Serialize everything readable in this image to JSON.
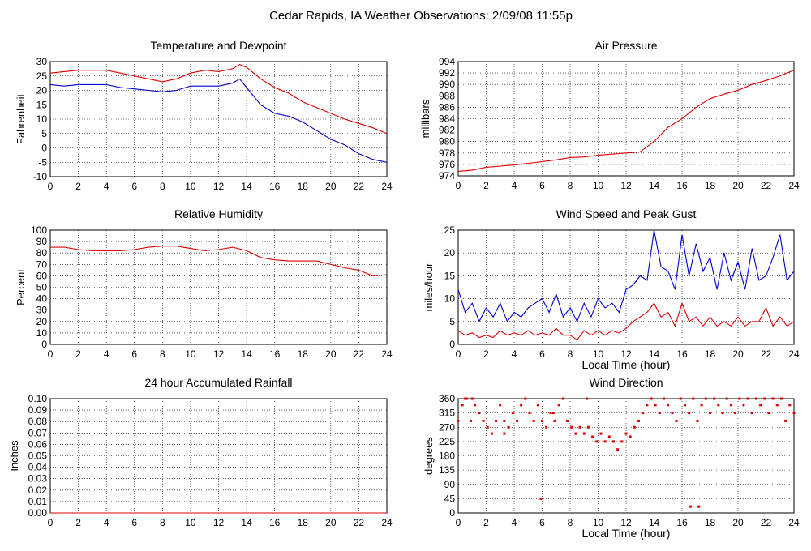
{
  "title": "Cedar Rapids, IA Weather Observations: 2/09/08 11:55p",
  "colors": {
    "red": "#e00000",
    "blue": "#0000d0",
    "grid": "#000000"
  },
  "chart_data": [
    {
      "id": "temp",
      "type": "line",
      "title": "Temperature and Dewpoint",
      "xlabel": "",
      "ylabel": "Fahrenheit",
      "xlim": [
        0,
        24
      ],
      "ylim": [
        -10,
        30
      ],
      "xticks": [
        0,
        2,
        4,
        6,
        8,
        10,
        12,
        14,
        16,
        18,
        20,
        22,
        24
      ],
      "yticks": [
        -10,
        -5,
        0,
        5,
        10,
        15,
        20,
        25,
        30
      ],
      "grid": true,
      "series": [
        {
          "color": "red",
          "x": [
            0,
            1,
            2,
            3,
            4,
            5,
            6,
            7,
            8,
            9,
            10,
            11,
            12,
            13,
            13.5,
            14,
            15,
            16,
            17,
            18,
            19,
            20,
            21,
            22,
            23,
            24
          ],
          "y": [
            26,
            26.5,
            27,
            27,
            27,
            26,
            25,
            24,
            23,
            24,
            26,
            27,
            26.5,
            27.5,
            29,
            28,
            24,
            21,
            19,
            16,
            14,
            12,
            10,
            8.5,
            7,
            5
          ]
        },
        {
          "color": "blue",
          "x": [
            0,
            1,
            2,
            3,
            4,
            5,
            6,
            7,
            8,
            9,
            10,
            11,
            12,
            13,
            13.5,
            14,
            15,
            16,
            17,
            18,
            19,
            20,
            21,
            22,
            23,
            24
          ],
          "y": [
            22,
            21.5,
            22,
            22,
            22,
            21,
            20.5,
            20,
            19.5,
            20,
            21.5,
            21.5,
            21.5,
            22.5,
            24,
            21,
            15,
            12,
            11,
            9,
            6,
            3,
            1,
            -2,
            -4,
            -5
          ]
        }
      ]
    },
    {
      "id": "pressure",
      "type": "line",
      "title": "Air Pressure",
      "xlabel": "",
      "ylabel": "millibars",
      "xlim": [
        0,
        24
      ],
      "ylim": [
        974,
        994
      ],
      "xticks": [
        0,
        2,
        4,
        6,
        8,
        10,
        12,
        14,
        16,
        18,
        20,
        22,
        24
      ],
      "yticks": [
        974,
        976,
        978,
        980,
        982,
        984,
        986,
        988,
        990,
        992,
        994
      ],
      "grid": true,
      "series": [
        {
          "color": "red",
          "x": [
            0,
            1,
            2,
            3,
            4,
            5,
            6,
            7,
            8,
            9,
            10,
            11,
            12,
            13,
            14,
            15,
            16,
            17,
            18,
            19,
            20,
            21,
            22,
            23,
            24
          ],
          "y": [
            974.8,
            975,
            975.5,
            975.7,
            975.9,
            976.2,
            976.5,
            976.8,
            977.2,
            977.3,
            977.6,
            977.8,
            978,
            978.2,
            980,
            982.5,
            984,
            986,
            987.5,
            988.3,
            989,
            990,
            990.7,
            991.5,
            992.5
          ]
        }
      ]
    },
    {
      "id": "rh",
      "type": "line",
      "title": "Relative Humidity",
      "xlabel": "",
      "ylabel": "Percent",
      "xlim": [
        0,
        24
      ],
      "ylim": [
        0,
        100
      ],
      "xticks": [
        0,
        2,
        4,
        6,
        8,
        10,
        12,
        14,
        16,
        18,
        20,
        22,
        24
      ],
      "yticks": [
        0,
        10,
        20,
        30,
        40,
        50,
        60,
        70,
        80,
        90,
        100
      ],
      "grid": true,
      "series": [
        {
          "color": "red",
          "x": [
            0,
            1,
            2,
            3,
            4,
            5,
            6,
            7,
            8,
            9,
            10,
            11,
            12,
            13,
            14,
            15,
            16,
            17,
            18,
            19,
            20,
            21,
            22,
            23,
            24
          ],
          "y": [
            85,
            85,
            83,
            82,
            82,
            82,
            83,
            85,
            86,
            86,
            84,
            82,
            83,
            85,
            82,
            76,
            74,
            73,
            73,
            73,
            70,
            67,
            65,
            60,
            61
          ]
        }
      ]
    },
    {
      "id": "wind",
      "type": "line",
      "title": "Wind Speed and Peak Gust",
      "xlabel": "Local Time (hour)",
      "ylabel": "miles/hour",
      "xlim": [
        0,
        24
      ],
      "ylim": [
        0,
        25
      ],
      "xticks": [
        0,
        2,
        4,
        6,
        8,
        10,
        12,
        14,
        16,
        18,
        20,
        22,
        24
      ],
      "yticks": [
        0,
        5,
        10,
        15,
        20,
        25
      ],
      "grid": true,
      "series": [
        {
          "color": "blue",
          "x": [
            0,
            0.5,
            1,
            1.5,
            2,
            2.5,
            3,
            3.5,
            4,
            4.5,
            5,
            5.5,
            6,
            6.5,
            7,
            7.5,
            8,
            8.5,
            9,
            9.5,
            10,
            10.5,
            11,
            11.5,
            12,
            12.5,
            13,
            13.5,
            14,
            14.5,
            15,
            15.5,
            16,
            16.5,
            17,
            17.5,
            18,
            18.5,
            19,
            19.5,
            20,
            20.5,
            21,
            21.5,
            22,
            22.5,
            23,
            23.5,
            24
          ],
          "y": [
            12,
            7,
            9,
            5,
            8,
            6,
            9,
            5,
            7,
            6,
            8,
            9,
            10,
            7,
            11,
            6,
            8,
            5,
            9,
            6,
            10,
            8,
            9,
            7,
            12,
            13,
            15,
            14,
            25,
            17,
            16,
            12,
            24,
            15,
            22,
            16,
            19,
            12,
            20,
            14,
            18,
            12,
            21,
            14,
            15,
            19,
            24,
            14,
            16
          ]
        },
        {
          "color": "red",
          "x": [
            0,
            0.5,
            1,
            1.5,
            2,
            2.5,
            3,
            3.5,
            4,
            4.5,
            5,
            5.5,
            6,
            6.5,
            7,
            7.5,
            8,
            8.5,
            9,
            9.5,
            10,
            10.5,
            11,
            11.5,
            12,
            12.5,
            13,
            13.5,
            14,
            14.5,
            15,
            15.5,
            16,
            16.5,
            17,
            17.5,
            18,
            18.5,
            19,
            19.5,
            20,
            20.5,
            21,
            21.5,
            22,
            22.5,
            23,
            23.5,
            24
          ],
          "y": [
            3,
            2,
            2.5,
            1.5,
            2,
            1.5,
            3,
            2,
            2.5,
            2,
            3,
            2,
            2.5,
            2,
            3.5,
            2,
            2,
            1,
            3,
            2,
            3,
            2,
            3,
            2.5,
            3.5,
            5,
            6,
            7,
            9,
            6,
            7,
            4,
            9,
            5,
            6,
            4,
            6,
            4,
            5,
            4,
            6,
            4,
            5,
            5,
            8,
            4,
            6,
            4,
            5
          ]
        }
      ]
    },
    {
      "id": "rain",
      "type": "line",
      "title": "24 hour Accumulated Rainfall",
      "xlabel": "",
      "ylabel": "Inches",
      "xlim": [
        0,
        24
      ],
      "ylim": [
        0,
        0.1
      ],
      "xticks": [
        0,
        2,
        4,
        6,
        8,
        10,
        12,
        14,
        16,
        18,
        20,
        22,
        24
      ],
      "yticks": [
        "0.00",
        "0.01",
        "0.02",
        "0.03",
        "0.04",
        "0.05",
        "0.06",
        "0.07",
        "0.08",
        "0.09",
        "0.10"
      ],
      "grid": true,
      "series": [
        {
          "color": "red",
          "x": [
            0,
            24
          ],
          "y": [
            0,
            0
          ]
        }
      ]
    },
    {
      "id": "wdir",
      "type": "scatter",
      "title": "Wind Direction",
      "xlabel": "Local Time (hour)",
      "ylabel": "degrees",
      "xlim": [
        0,
        24
      ],
      "ylim": [
        0,
        360
      ],
      "xticks": [
        0,
        2,
        4,
        6,
        8,
        10,
        12,
        14,
        16,
        18,
        20,
        22,
        24
      ],
      "yticks": [
        0,
        45,
        90,
        135,
        180,
        225,
        270,
        315,
        360
      ],
      "grid": true,
      "series": [
        {
          "color": "red",
          "x": [
            0,
            0.3,
            0.6,
            0.9,
            1.2,
            1.5,
            1.8,
            2.1,
            2.4,
            2.7,
            3,
            3.3,
            3.6,
            3.9,
            4.2,
            4.5,
            4.8,
            5.1,
            5.4,
            5.7,
            6,
            6.3,
            6.6,
            6.9,
            7.2,
            7.5,
            7.8,
            8.1,
            8.4,
            8.7,
            9,
            9.3,
            9.6,
            9.9,
            10.2,
            10.5,
            10.8,
            11.1,
            11.4,
            11.7,
            12,
            12.3,
            12.6,
            12.9,
            13.2,
            13.5,
            13.8,
            14.1,
            14.4,
            14.7,
            15,
            15.3,
            15.6,
            15.9,
            16.2,
            16.5,
            16.8,
            17.1,
            17.4,
            17.7,
            18,
            18.3,
            18.6,
            18.9,
            19.2,
            19.5,
            19.8,
            20.1,
            20.4,
            20.7,
            21,
            21.3,
            21.6,
            21.9,
            22.2,
            22.5,
            22.8,
            23.1,
            23.4,
            23.7,
            24,
            5.9,
            16.6,
            17.2,
            0.5,
            1.0,
            3.3,
            6.8,
            9.2
          ],
          "y": [
            290,
            340,
            360,
            290,
            340,
            315,
            290,
            270,
            250,
            290,
            340,
            290,
            270,
            315,
            290,
            340,
            360,
            315,
            290,
            340,
            290,
            270,
            315,
            290,
            340,
            360,
            290,
            270,
            250,
            270,
            250,
            270,
            240,
            225,
            250,
            225,
            240,
            225,
            200,
            225,
            250,
            240,
            270,
            290,
            315,
            340,
            360,
            340,
            315,
            360,
            340,
            315,
            290,
            360,
            340,
            315,
            360,
            290,
            340,
            360,
            315,
            360,
            340,
            315,
            360,
            340,
            315,
            360,
            340,
            360,
            315,
            360,
            340,
            360,
            315,
            360,
            340,
            360,
            290,
            340,
            315,
            45,
            20,
            20,
            360,
            360,
            250,
            315,
            360
          ]
        }
      ]
    }
  ]
}
